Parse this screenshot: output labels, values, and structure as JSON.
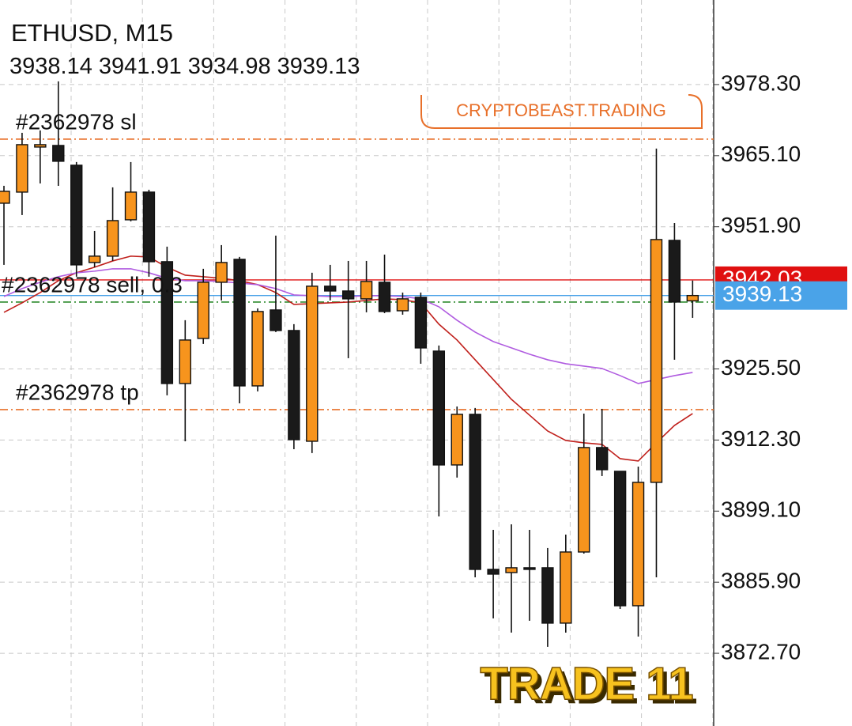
{
  "chart_data": {
    "type": "candlestick",
    "title": "ETHUSD, M15",
    "ylim": [
      3859.2,
      3994.0
    ],
    "yticks": [
      {
        "value": 3978.3,
        "label": "3978.30"
      },
      {
        "value": 3965.1,
        "label": "3965.10"
      },
      {
        "value": 3951.9,
        "label": "3951.90"
      },
      {
        "value": 3925.5,
        "label": "3925.50"
      },
      {
        "value": 3912.3,
        "label": "3912.30"
      },
      {
        "value": 3899.1,
        "label": "3899.10"
      },
      {
        "value": 3885.9,
        "label": "3885.90"
      },
      {
        "value": 3872.7,
        "label": "3872.70"
      }
    ],
    "grid": true,
    "up_color": "#f7941d",
    "down_color": "#1a1a1a",
    "candles": [
      {
        "o": 3956.27,
        "h": 3959.5,
        "l": 3944.82,
        "c": 3958.48
      },
      {
        "o": 3958.33,
        "h": 3969.34,
        "l": 3954.07,
        "c": 3967.14
      },
      {
        "o": 3966.7,
        "h": 3969.78,
        "l": 3959.94,
        "c": 3967.14
      },
      {
        "o": 3966.99,
        "h": 3978.89,
        "l": 3959.5,
        "c": 3964.06
      },
      {
        "o": 3963.32,
        "h": 3963.91,
        "l": 3942.62,
        "c": 3944.82
      },
      {
        "o": 3945.26,
        "h": 3951.13,
        "l": 3944.38,
        "c": 3946.44
      },
      {
        "o": 3946.44,
        "h": 3959.21,
        "l": 3945.55,
        "c": 3953.04
      },
      {
        "o": 3953.19,
        "h": 3963.91,
        "l": 3952.9,
        "c": 3958.33
      },
      {
        "o": 3958.33,
        "h": 3958.77,
        "l": 3942.62,
        "c": 3945.41
      },
      {
        "o": 3945.41,
        "h": 3948.2,
        "l": 3920.59,
        "c": 3922.79
      },
      {
        "o": 3922.79,
        "h": 3934.54,
        "l": 3912.07,
        "c": 3930.87
      },
      {
        "o": 3931.16,
        "h": 3944.09,
        "l": 3930.14,
        "c": 3941.59
      },
      {
        "o": 3941.59,
        "h": 3948.49,
        "l": 3938.21,
        "c": 3945.26
      },
      {
        "o": 3945.85,
        "h": 3946.29,
        "l": 3919.12,
        "c": 3922.35
      },
      {
        "o": 3922.35,
        "h": 3936.74,
        "l": 3921.33,
        "c": 3936.16
      },
      {
        "o": 3936.45,
        "h": 3950.25,
        "l": 3932.34,
        "c": 3932.63
      },
      {
        "o": 3932.63,
        "h": 3933.81,
        "l": 3910.6,
        "c": 3912.37
      },
      {
        "o": 3912.07,
        "h": 3943.35,
        "l": 3909.87,
        "c": 3940.86
      },
      {
        "o": 3940.86,
        "h": 3944.82,
        "l": 3938.21,
        "c": 3939.97
      },
      {
        "o": 3939.97,
        "h": 3945.55,
        "l": 3927.49,
        "c": 3938.51
      },
      {
        "o": 3938.51,
        "h": 3945.55,
        "l": 3936.01,
        "c": 3941.74
      },
      {
        "o": 3941.59,
        "h": 3946.73,
        "l": 3935.86,
        "c": 3936.16
      },
      {
        "o": 3936.3,
        "h": 3939.68,
        "l": 3935.57,
        "c": 3938.51
      },
      {
        "o": 3938.8,
        "h": 3939.68,
        "l": 3926.46,
        "c": 3929.4
      },
      {
        "o": 3928.81,
        "h": 3929.84,
        "l": 3898.12,
        "c": 3907.67
      },
      {
        "o": 3907.67,
        "h": 3918.53,
        "l": 3905.32,
        "c": 3917.07
      },
      {
        "o": 3917.07,
        "h": 3918.24,
        "l": 3886.81,
        "c": 3888.28
      },
      {
        "o": 3888.28,
        "h": 3895.62,
        "l": 3879.18,
        "c": 3887.4
      },
      {
        "o": 3887.69,
        "h": 3896.65,
        "l": 3876.54,
        "c": 3888.58
      },
      {
        "o": 3888.58,
        "h": 3895.62,
        "l": 3878.74,
        "c": 3888.28
      },
      {
        "o": 3888.58,
        "h": 3892.25,
        "l": 3873.9,
        "c": 3878.3
      },
      {
        "o": 3878.3,
        "h": 3894.74,
        "l": 3876.54,
        "c": 3891.51
      },
      {
        "o": 3891.51,
        "h": 3917.21,
        "l": 3891.22,
        "c": 3910.9
      },
      {
        "o": 3910.9,
        "h": 3918.09,
        "l": 3905.61,
        "c": 3906.79
      },
      {
        "o": 3906.49,
        "h": 3906.49,
        "l": 3880.94,
        "c": 3881.53
      },
      {
        "o": 3881.53,
        "h": 3907.37,
        "l": 3875.81,
        "c": 3904.44
      },
      {
        "o": 3904.44,
        "h": 3966.41,
        "l": 3886.81,
        "c": 3949.52
      },
      {
        "o": 3949.37,
        "h": 3952.6,
        "l": 3927.2,
        "c": 3937.92
      },
      {
        "o": 3938.14,
        "h": 3941.91,
        "l": 3934.98,
        "c": 3939.13
      }
    ],
    "moving_averages": [
      {
        "color": "#c0201c",
        "values": [
          3936.01,
          3937.77,
          3939.68,
          3941.88,
          3943.35,
          3944.38,
          3945.55,
          3946.44,
          3946.29,
          3944.38,
          3942.91,
          3942.62,
          3942.32,
          3941.88,
          3941.15,
          3939.68,
          3937.48,
          3937.62,
          3937.77,
          3937.92,
          3938.21,
          3938.51,
          3938.36,
          3937.77,
          3933.81,
          3930.87,
          3927.2,
          3923.53,
          3919.86,
          3916.92,
          3913.98,
          3912.22,
          3911.78,
          3911.49,
          3908.84,
          3908.4,
          3911.78,
          3915.01,
          3917.21
        ]
      },
      {
        "color": "#b05ce0",
        "values": [
          3938.95,
          3940.42,
          3941.59,
          3942.62,
          3943.35,
          3943.65,
          3944.09,
          3944.09,
          3943.35,
          3942.32,
          3941.88,
          3941.88,
          3941.74,
          3941.44,
          3941.15,
          3940.42,
          3939.24,
          3939.09,
          3938.95,
          3938.95,
          3939.09,
          3939.09,
          3938.95,
          3938.51,
          3937.04,
          3934.54,
          3932.34,
          3930.58,
          3929.4,
          3928.23,
          3927.2,
          3926.46,
          3926.02,
          3925.58,
          3924.26,
          3922.79,
          3923.53,
          3924.26,
          3924.85
        ]
      }
    ],
    "levels": [
      {
        "label": "#2362978 sl",
        "value": 3968.17,
        "color": "#e8702a"
      },
      {
        "label": "#2362978 sell, 0.3",
        "value": 3937.92,
        "color": "#2e8b2e"
      },
      {
        "label": "#2362978 tp",
        "value": 3917.95,
        "color": "#e8702a"
      }
    ],
    "ask": {
      "value": 3942.03,
      "color": "#e01010"
    },
    "bid_color": "#4aa3e8",
    "watermark": "CRYPTOBEAST.TRADING",
    "caption": "TRADE 11"
  }
}
